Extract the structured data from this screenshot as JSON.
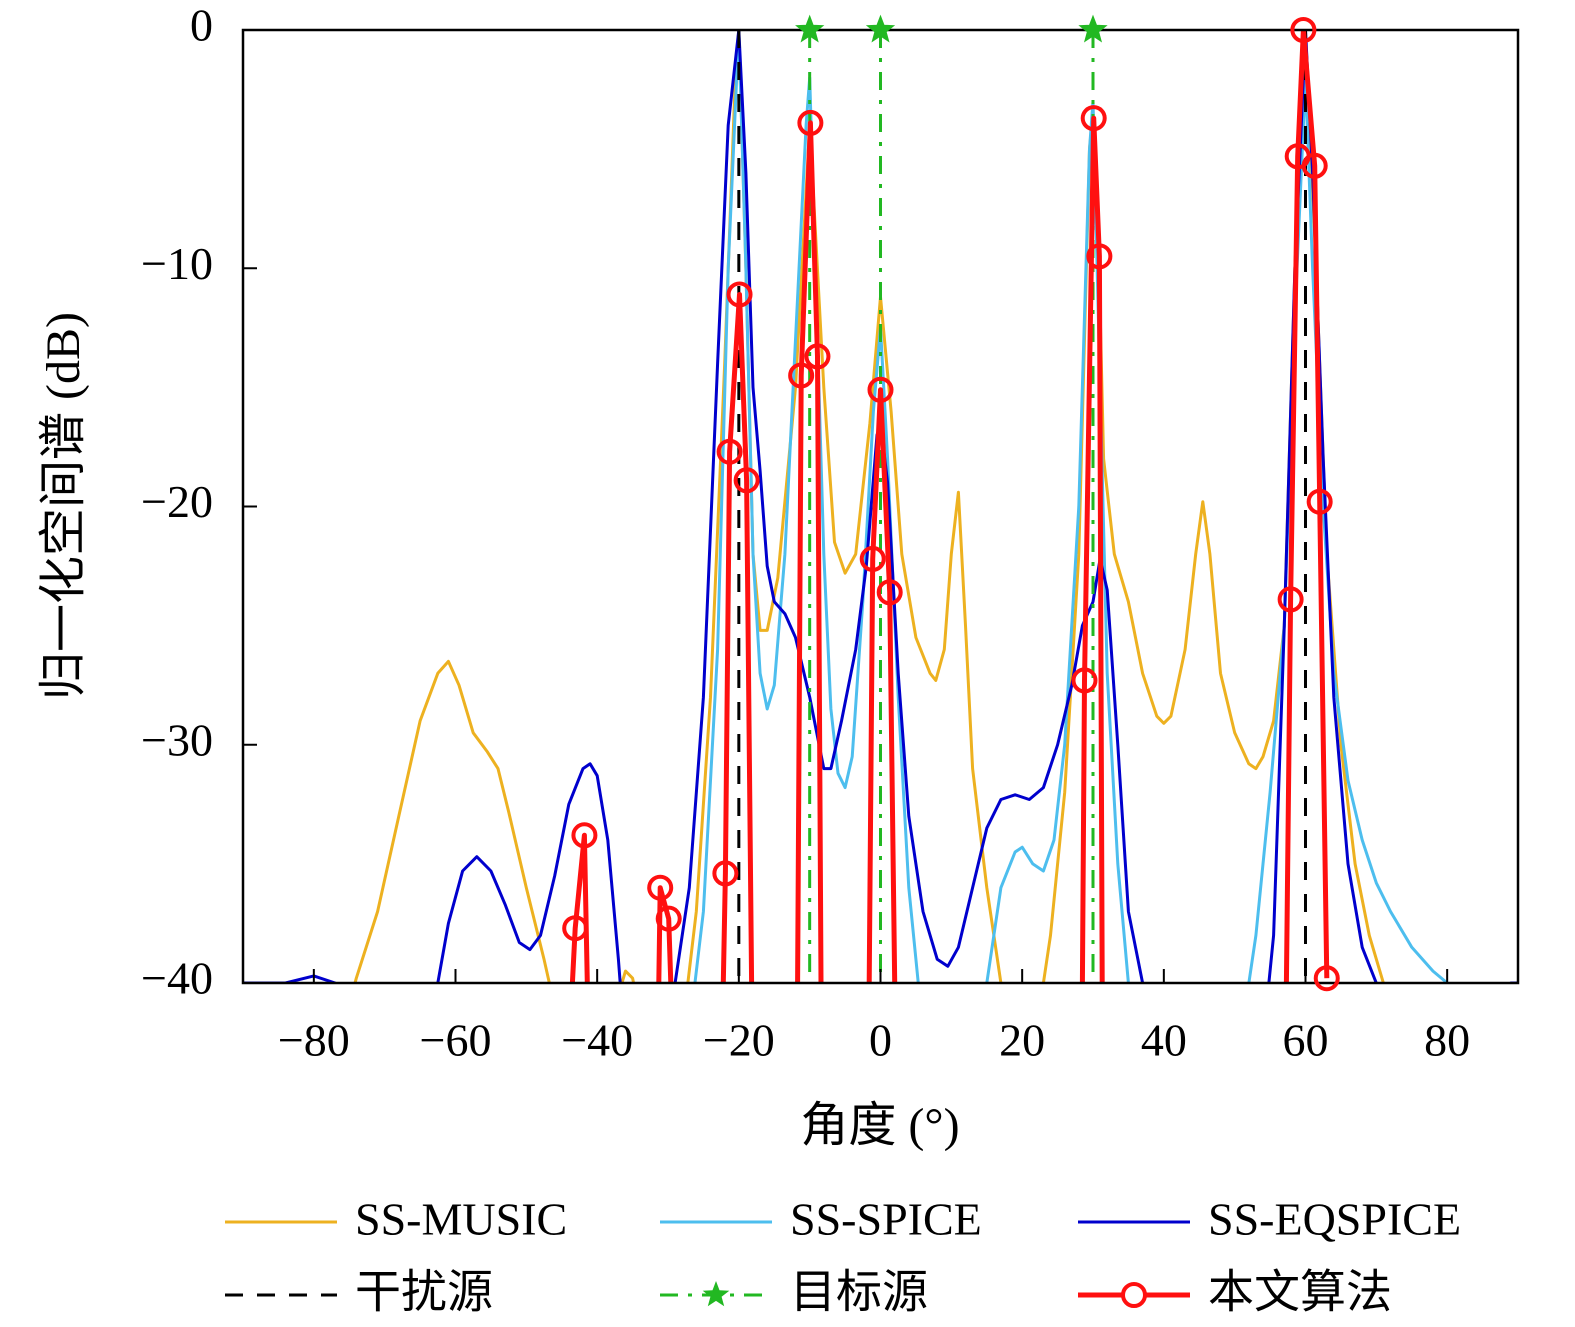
{
  "chart_data": {
    "type": "line",
    "xlabel": "角度 (°)",
    "ylabel": "归一化空间谱 (dB)",
    "xlim": [
      -90,
      90
    ],
    "ylim": [
      -40,
      0
    ],
    "xticks": [
      {
        "value": -80,
        "label": "−80"
      },
      {
        "value": -60,
        "label": "−60"
      },
      {
        "value": -40,
        "label": "−40"
      },
      {
        "value": -20,
        "label": "−20"
      },
      0,
      20,
      40,
      60,
      80
    ],
    "yticks": [
      0,
      {
        "value": -10,
        "label": "−10"
      },
      {
        "value": -20,
        "label": "−20"
      },
      {
        "value": -30,
        "label": "−30"
      },
      {
        "value": -40,
        "label": "−40"
      }
    ],
    "legend": "bottom",
    "series": [
      {
        "name": "SS-MUSIC",
        "color": "#EDB120",
        "line_style": "solid",
        "marker": "none",
        "x": [
          -76,
          -74,
          -71,
          -68,
          -65,
          -62.5,
          -61,
          -59.5,
          -57.5,
          -55.5,
          -54,
          -52.5,
          -50,
          -47.5,
          -46,
          -37.5,
          -36,
          -35,
          -33.5,
          -28,
          -26,
          -24,
          -22,
          -20.5,
          -20,
          -19,
          -18,
          -17,
          -16,
          -14.5,
          -12,
          -10,
          -8,
          -6.5,
          -5,
          -3.5,
          -1.5,
          0,
          1.5,
          3,
          5,
          7,
          7.8,
          9,
          10,
          11,
          12,
          13,
          15,
          17,
          18,
          22,
          24,
          26,
          28,
          29.5,
          30,
          30.7,
          31.5,
          33,
          35,
          37,
          39,
          40,
          41,
          43,
          44.5,
          45.5,
          46.5,
          48,
          50,
          52,
          53,
          54,
          55.5,
          57,
          58.5,
          60,
          61.5,
          63,
          65,
          67,
          69,
          71,
          73
        ],
        "values": [
          -42,
          -39.8,
          -37,
          -33,
          -29,
          -27,
          -26.5,
          -27.5,
          -29.5,
          -30.3,
          -31,
          -32.8,
          -36,
          -39,
          -41,
          -41,
          -39.5,
          -39.8,
          -42,
          -42,
          -37,
          -28,
          -14,
          -2,
          0,
          -10,
          -22,
          -25.2,
          -25.2,
          -23,
          -15,
          -4,
          -15,
          -21.5,
          -22.8,
          -22,
          -16.5,
          -11.2,
          -16,
          -22,
          -25.5,
          -27,
          -27.3,
          -26,
          -22,
          -19.4,
          -25,
          -31,
          -36,
          -40,
          -42,
          -42,
          -38,
          -32,
          -22,
          -5,
          -3.5,
          -8,
          -18,
          -22,
          -24,
          -27,
          -28.8,
          -29.1,
          -28.8,
          -26,
          -22,
          -19.8,
          -22,
          -27,
          -29.5,
          -30.8,
          -31,
          -30.5,
          -29,
          -25,
          -10,
          0,
          -10,
          -22,
          -30,
          -35,
          -38,
          -40,
          -42
        ]
      },
      {
        "name": "SS-SPICE",
        "color": "#4DBEEE",
        "line_style": "solid",
        "marker": "none",
        "x": [
          -27,
          -25,
          -23,
          -21.5,
          -20,
          -19,
          -18,
          -17,
          -16,
          -15,
          -13.5,
          -12,
          -10.5,
          -10,
          -9,
          -8,
          -7,
          -6,
          -5,
          -4,
          -2.5,
          -1,
          0,
          1,
          2.5,
          4,
          6,
          13,
          15,
          17,
          19,
          20,
          21.5,
          23,
          24.5,
          26,
          28,
          29.5,
          30,
          31,
          32,
          33.5,
          35,
          36,
          51,
          53,
          55,
          57,
          58.5,
          60,
          61,
          62.5,
          64,
          66,
          68,
          70,
          72,
          75,
          78,
          80,
          81
        ],
        "values": [
          -42,
          -37,
          -26,
          -10,
          0,
          -10,
          -22,
          -27,
          -28.5,
          -27.5,
          -22,
          -13,
          -4,
          -2,
          -12,
          -22,
          -28.5,
          -31.2,
          -31.8,
          -30.5,
          -24,
          -16,
          -12.5,
          -18,
          -28,
          -36,
          -42,
          -42,
          -40,
          -36,
          -34.5,
          -34.3,
          -35,
          -35.3,
          -34,
          -30,
          -20,
          -5,
          -3,
          -15,
          -27,
          -35,
          -40,
          -42,
          -42,
          -38,
          -32,
          -25,
          -12,
          -2,
          -10,
          -20,
          -27,
          -31.5,
          -34,
          -35.8,
          -37,
          -38.5,
          -39.5,
          -40,
          -41
        ]
      },
      {
        "name": "SS-EQSPICE",
        "color": "#0000CD",
        "line_style": "solid",
        "marker": "none",
        "x": [
          -90,
          -84,
          -80,
          -77,
          -76,
          -64,
          -62.5,
          -61,
          -59,
          -57,
          -55,
          -53,
          -51,
          -49.5,
          -48,
          -46,
          -44,
          -42,
          -41,
          -40,
          -38.5,
          -37,
          -36.5,
          -30,
          -29,
          -27,
          -25,
          -23,
          -21.5,
          -20,
          -19,
          -18,
          -17,
          -16,
          -15,
          -13.5,
          -12,
          -10,
          -8,
          -7,
          -5.5,
          -3.5,
          -2,
          -0.5,
          0,
          1,
          2.5,
          4,
          6,
          8,
          9.5,
          11,
          13,
          15,
          17,
          19,
          21,
          23,
          25,
          27,
          28.5,
          30,
          31,
          32,
          33.5,
          35,
          37,
          37.5,
          54.5,
          55.5,
          57,
          58.5,
          60,
          61,
          62.5,
          64,
          66,
          68,
          70,
          71,
          88,
          89,
          90
        ],
        "values": [
          -40,
          -40,
          -39.7,
          -40,
          -41,
          -41,
          -40,
          -37.5,
          -35.3,
          -34.7,
          -35.3,
          -36.7,
          -38.3,
          -38.6,
          -38,
          -35.5,
          -32.5,
          -31,
          -30.8,
          -31.3,
          -34,
          -39,
          -41,
          -41,
          -40,
          -36,
          -28,
          -14,
          -4,
          0,
          -6,
          -15,
          -18.5,
          -22.5,
          -24,
          -24.5,
          -25.5,
          -28,
          -31,
          -31,
          -29,
          -26,
          -22.5,
          -17,
          -16.5,
          -19,
          -27,
          -33,
          -37,
          -39,
          -39.3,
          -38.5,
          -36,
          -33.5,
          -32.3,
          -32.1,
          -32.3,
          -31.8,
          -30,
          -27.5,
          -25,
          -24,
          -22.2,
          -23.5,
          -30,
          -37,
          -40,
          -41,
          -41,
          -38,
          -25,
          -10,
          0,
          -6,
          -18,
          -28,
          -35,
          -38.5,
          -40,
          -41,
          -41,
          -40,
          -40
        ]
      },
      {
        "name": "干扰源",
        "color": "#000000",
        "line_style": "dashed",
        "marker": "none",
        "x": [
          -20,
          60
        ]
      },
      {
        "name": "目标源",
        "color": "#22B822",
        "line_style": "dashdot",
        "marker": "star",
        "x": [
          -10,
          0,
          30
        ],
        "values": [
          0,
          0,
          0
        ]
      },
      {
        "name": "本文算法",
        "color": "#FF1010",
        "line_style": "solid",
        "marker": "circle",
        "x": [
          -43.5,
          -43.1,
          -41.8,
          -41.4,
          null,
          -31.3,
          -31.1,
          -29.9,
          -29.6,
          null,
          -22.2,
          -21.9,
          -21.3,
          -19.9,
          -18.9,
          -18.2,
          null,
          -11.7,
          -11.2,
          -9.9,
          -8.9,
          -8.4,
          null,
          -1.6,
          -1.1,
          0,
          1.3,
          2,
          null,
          28.5,
          28.8,
          30.1,
          30.9,
          31.3,
          null,
          57.3,
          57.9,
          58.9,
          59.7,
          61.3,
          62,
          63
        ],
        "values": [
          -40,
          -37.7,
          -33.8,
          -40,
          null,
          -40,
          -36,
          -37.3,
          -40,
          null,
          -40,
          -35.4,
          -17.7,
          -11.1,
          -18.9,
          -40,
          null,
          -40,
          -14.5,
          -3.9,
          -13.7,
          -40,
          null,
          -40,
          -22.2,
          -15.1,
          -23.6,
          -40,
          null,
          -40,
          -27.3,
          -3.7,
          -9.5,
          -40,
          null,
          -40,
          -23.9,
          -5.3,
          0,
          -5.7,
          -19.8,
          -39.8
        ]
      }
    ]
  }
}
